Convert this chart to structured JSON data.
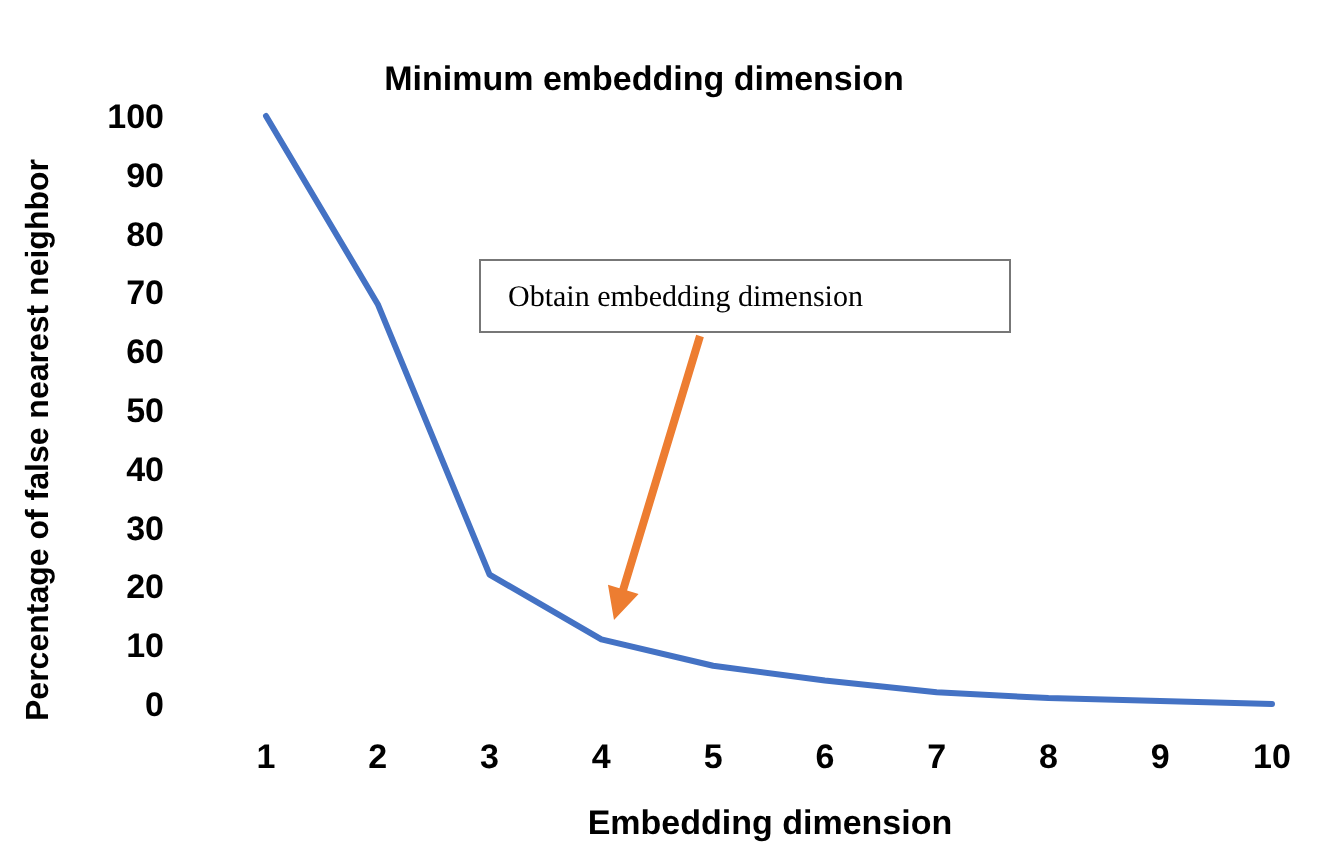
{
  "chart_data": {
    "type": "line",
    "title": "Minimum embedding dimension",
    "xlabel": "Embedding dimension",
    "ylabel": "Percentage of false nearest neighbor",
    "categories": [
      "1",
      "2",
      "3",
      "4",
      "5",
      "6",
      "7",
      "8",
      "9",
      "10"
    ],
    "series": [
      {
        "color": "#4472c4",
        "values": [
          100,
          68,
          22,
          11,
          6.5,
          4,
          2,
          1,
          0.5,
          0
        ]
      }
    ],
    "ylim": [
      0,
      100
    ],
    "yticks": [
      0,
      10,
      20,
      30,
      40,
      50,
      60,
      70,
      80,
      90,
      100
    ],
    "grid": false,
    "marker": "none",
    "line_style": "solid",
    "annotations": [
      "Obtain embedding dimension"
    ]
  }
}
